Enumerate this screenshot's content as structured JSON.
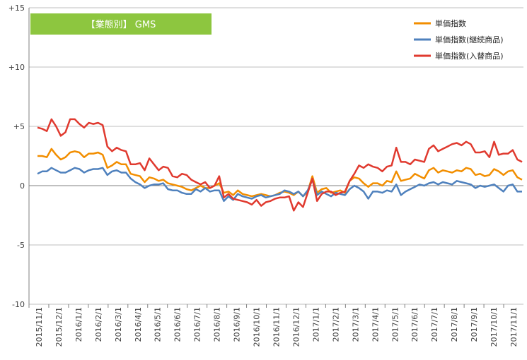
{
  "chart_data": {
    "type": "line",
    "title": "【業態別】 GMS",
    "title_bg": "#8dc63f",
    "xlabel": "",
    "ylabel": "",
    "ylim": [
      -10,
      15
    ],
    "y_ticks": [
      -10,
      -5,
      0,
      5,
      10,
      15
    ],
    "y_tick_labels": [
      "-10",
      "-5",
      "0",
      "+5",
      "+10",
      "+15"
    ],
    "grid": "horizontal",
    "legend_position": "top-right",
    "x_tick_labels": [
      "2015/11/1",
      "2015/12/1",
      "2016/1/1",
      "2016/2/1",
      "2016/3/1",
      "2016/4/1",
      "2016/5/1",
      "2016/6/1",
      "2016/7/1",
      "2016/8/1",
      "2016/9/1",
      "2016/10/1",
      "2016/11/1",
      "2016/12/1",
      "2017/1/1",
      "2017/2/1",
      "2017/3/1",
      "2017/4/1",
      "2017/5/1",
      "2017/6/1",
      "2017/7/1",
      "2017/8/1",
      "2017/9/1",
      "2017/10/1",
      "2017/11/1"
    ],
    "series": [
      {
        "name": "単価指数",
        "color": "#f28e00",
        "values": [
          2.5,
          2.5,
          2.4,
          3.1,
          2.6,
          2.2,
          2.4,
          2.8,
          2.9,
          2.8,
          2.4,
          2.7,
          2.7,
          2.8,
          2.6,
          1.5,
          1.7,
          2.0,
          1.8,
          1.8,
          1.0,
          0.9,
          0.8,
          0.3,
          0.7,
          0.6,
          0.4,
          0.5,
          0.2,
          0.1,
          0.0,
          -0.1,
          -0.3,
          -0.4,
          -0.2,
          0.0,
          -0.2,
          -0.2,
          0.0,
          0.2,
          -0.6,
          -0.5,
          -0.8,
          -0.4,
          -0.7,
          -0.8,
          -0.9,
          -0.8,
          -0.7,
          -0.8,
          -0.9,
          -0.8,
          -0.6,
          -0.5,
          -0.6,
          -0.8,
          -0.5,
          -0.9,
          -0.5,
          0.8,
          -0.6,
          -0.3,
          -0.2,
          -0.6,
          -0.5,
          -0.4,
          -0.6,
          0.4,
          0.7,
          0.6,
          0.2,
          -0.1,
          0.2,
          0.2,
          0.0,
          0.4,
          0.3,
          1.2,
          0.4,
          0.5,
          0.6,
          1.0,
          0.8,
          0.6,
          1.3,
          1.5,
          1.1,
          1.3,
          1.2,
          1.1,
          1.3,
          1.2,
          1.5,
          1.4,
          0.9,
          1.0,
          0.8,
          0.9,
          1.4,
          1.2,
          0.9,
          1.2,
          1.3,
          0.7,
          0.5
        ]
      },
      {
        "name": "単価指数(継続商品)",
        "color": "#4f81bd",
        "values": [
          1.0,
          1.2,
          1.2,
          1.5,
          1.3,
          1.1,
          1.1,
          1.3,
          1.5,
          1.4,
          1.1,
          1.3,
          1.4,
          1.4,
          1.5,
          0.9,
          1.2,
          1.3,
          1.1,
          1.1,
          0.6,
          0.3,
          0.1,
          -0.2,
          0.0,
          0.1,
          0.1,
          0.2,
          -0.3,
          -0.4,
          -0.4,
          -0.6,
          -0.7,
          -0.7,
          -0.3,
          -0.5,
          -0.2,
          -0.5,
          -0.4,
          -0.4,
          -1.3,
          -0.9,
          -1.2,
          -0.7,
          -0.9,
          -1.0,
          -1.1,
          -0.9,
          -0.8,
          -1.0,
          -0.9,
          -0.8,
          -0.7,
          -0.4,
          -0.5,
          -0.7,
          -0.5,
          -0.9,
          -0.4,
          0.5,
          -0.8,
          -0.5,
          -0.7,
          -0.9,
          -0.6,
          -0.7,
          -0.8,
          -0.3,
          0.0,
          -0.2,
          -0.5,
          -1.1,
          -0.5,
          -0.5,
          -0.6,
          -0.4,
          -0.5,
          0.1,
          -0.8,
          -0.5,
          -0.3,
          -0.1,
          0.1,
          0.0,
          0.2,
          0.3,
          0.1,
          0.3,
          0.2,
          0.1,
          0.4,
          0.3,
          0.2,
          0.1,
          -0.2,
          0.0,
          -0.1,
          0.0,
          0.1,
          -0.2,
          -0.5,
          0.0,
          0.1,
          -0.5,
          -0.5
        ]
      },
      {
        "name": "単価指数(入替商品)",
        "color": "#e03a2f",
        "values": [
          4.9,
          4.8,
          4.6,
          5.6,
          5.0,
          4.2,
          4.5,
          5.6,
          5.6,
          5.2,
          4.9,
          5.3,
          5.2,
          5.3,
          5.1,
          3.3,
          2.9,
          3.2,
          3.0,
          2.9,
          1.8,
          1.8,
          1.9,
          1.3,
          2.3,
          1.8,
          1.3,
          1.6,
          1.5,
          0.8,
          0.7,
          1.0,
          0.9,
          0.5,
          0.3,
          0.1,
          0.3,
          -0.2,
          0.0,
          0.8,
          -1.0,
          -0.7,
          -1.1,
          -1.2,
          -1.3,
          -1.4,
          -1.6,
          -1.2,
          -1.7,
          -1.4,
          -1.3,
          -1.1,
          -1.0,
          -1.0,
          -0.9,
          -2.1,
          -1.4,
          -1.8,
          -0.6,
          0.6,
          -1.3,
          -0.7,
          -0.5,
          -0.5,
          -0.8,
          -0.6,
          -0.5,
          0.4,
          1.0,
          1.7,
          1.5,
          1.8,
          1.6,
          1.5,
          1.2,
          1.6,
          1.7,
          3.2,
          2.0,
          2.0,
          1.8,
          2.2,
          2.1,
          2.0,
          3.1,
          3.4,
          2.9,
          3.1,
          3.3,
          3.5,
          3.6,
          3.4,
          3.7,
          3.5,
          2.8,
          2.8,
          2.9,
          2.4,
          3.7,
          2.6,
          2.7,
          2.7,
          3.0,
          2.2,
          2.0
        ]
      }
    ]
  }
}
